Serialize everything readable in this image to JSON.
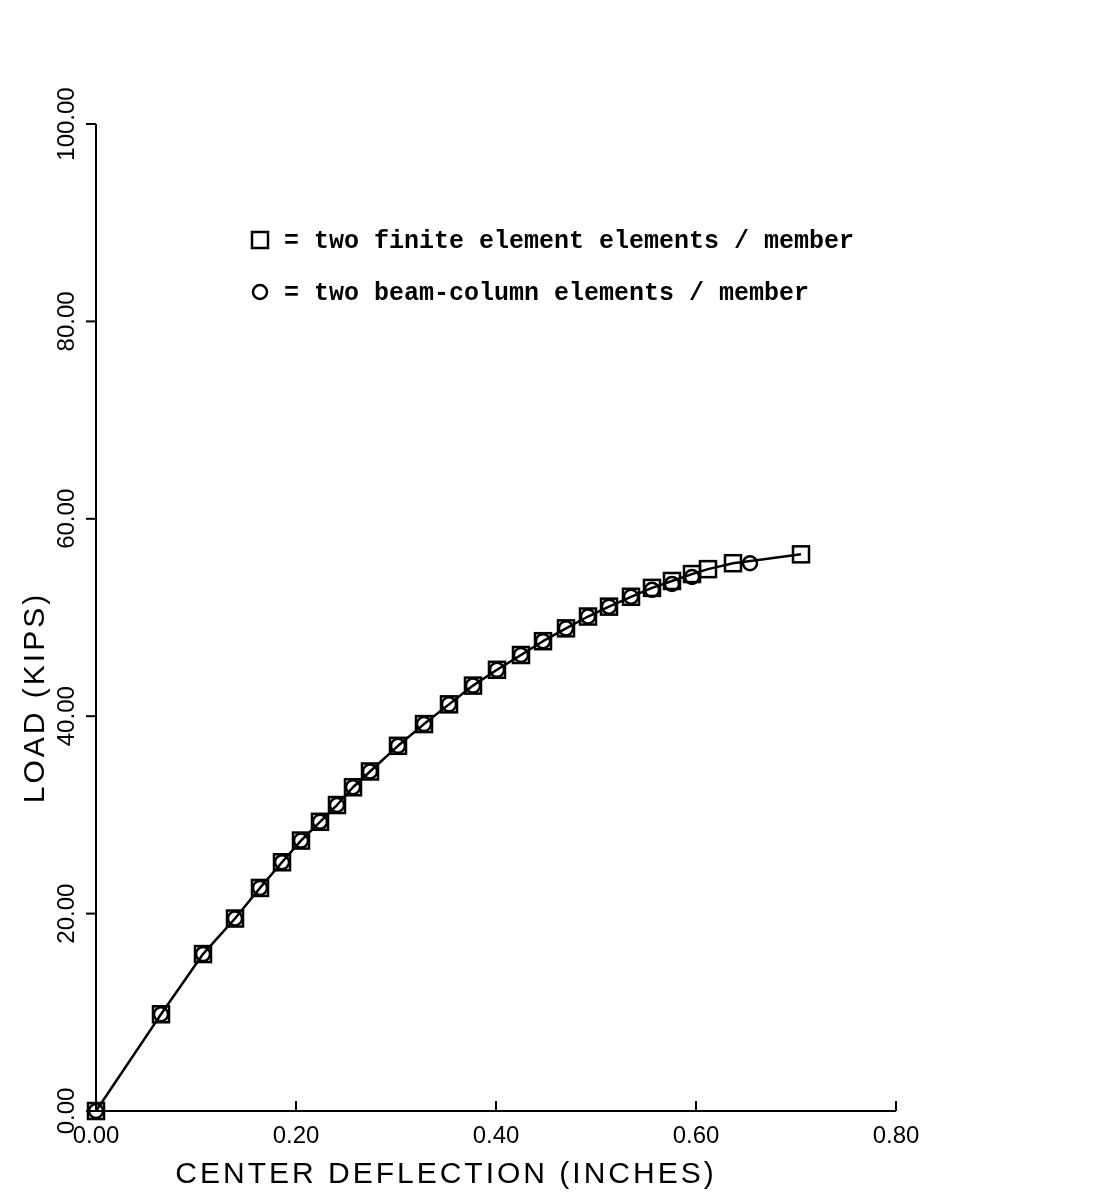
{
  "chart_data": {
    "type": "line",
    "xlabel": "CENTER DEFLECTION (INCHES)",
    "ylabel": "LOAD (KIPS)",
    "xlim": [
      0,
      0.8
    ],
    "ylim": [
      0,
      100
    ],
    "xticks": [
      {
        "value": 0,
        "label": "0.00"
      },
      {
        "value": 0.2,
        "label": "0.20"
      },
      {
        "value": 0.4,
        "label": "0.40"
      },
      {
        "value": 0.6,
        "label": "0.60"
      },
      {
        "value": 0.8,
        "label": "0.80"
      }
    ],
    "yticks": [
      {
        "value": 0,
        "label": "0.00"
      },
      {
        "value": 20,
        "label": "20.00"
      },
      {
        "value": 40,
        "label": "40.00"
      },
      {
        "value": 60,
        "label": "60.00"
      },
      {
        "value": 80,
        "label": "80.00"
      },
      {
        "value": 100,
        "label": "100.00"
      }
    ],
    "grid": false,
    "legend": "top right",
    "series": [
      {
        "name": "= two finite element elements / member",
        "marker": "square",
        "line_style": "solid",
        "color": "#000000",
        "x": [
          0,
          0.065,
          0.107,
          0.139,
          0.164,
          0.186,
          0.205,
          0.224,
          0.241,
          0.257,
          0.274,
          0.302,
          0.328,
          0.353,
          0.377,
          0.401,
          0.425,
          0.447,
          0.47,
          0.492,
          0.513,
          0.535,
          0.556,
          0.576,
          0.596,
          0.612,
          0.637,
          0.705
        ],
        "values": [
          0,
          9.8,
          15.9,
          19.5,
          22.6,
          25.2,
          27.4,
          29.3,
          31,
          32.8,
          34.4,
          37,
          39.2,
          41.2,
          43.1,
          44.7,
          46.2,
          47.6,
          48.9,
          50.1,
          51.1,
          52.1,
          53,
          53.7,
          54.4,
          54.9,
          55.5,
          56.4
        ]
      },
      {
        "name": "= two beam-column elements / member",
        "type": "scatter",
        "marker": "circle",
        "color": "#000000",
        "x": [
          0,
          0.065,
          0.107,
          0.139,
          0.164,
          0.186,
          0.205,
          0.224,
          0.241,
          0.257,
          0.274,
          0.302,
          0.328,
          0.353,
          0.377,
          0.401,
          0.425,
          0.447,
          0.47,
          0.492,
          0.513,
          0.535,
          0.556,
          0.576,
          0.596,
          0.654
        ],
        "values": [
          0,
          9.8,
          15.9,
          19.5,
          22.6,
          25.2,
          27.4,
          29.3,
          31,
          32.8,
          34.4,
          37,
          39.2,
          41.2,
          43.1,
          44.7,
          46.2,
          47.6,
          48.9,
          50.1,
          51.1,
          52.1,
          52.8,
          53.4,
          54.1,
          55.5
        ]
      }
    ]
  }
}
